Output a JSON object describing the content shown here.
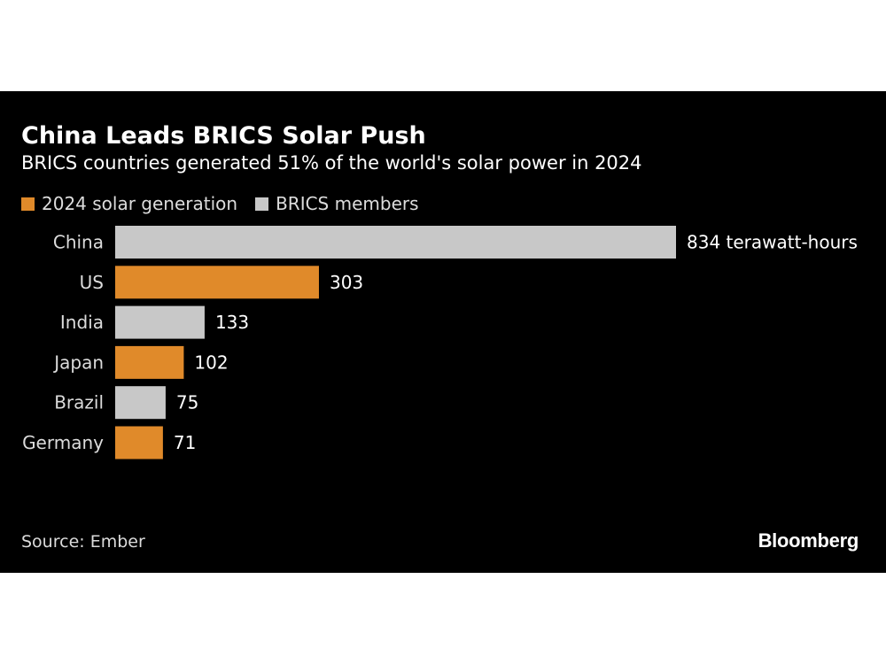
{
  "title": "China Leads BRICS Solar Push",
  "subtitle": "BRICS countries generated 51% of the world's solar power in 2024",
  "legend": [
    {
      "label": "2024 solar generation",
      "color": "#e08a2a"
    },
    {
      "label": "BRICS members",
      "color": "#c8c8c8"
    }
  ],
  "source": "Source: Ember",
  "brand": "Bloomberg",
  "colors": {
    "background": "#000000",
    "highlight": "#e08a2a",
    "brics": "#c8c8c8",
    "text": "#ffffff",
    "muted": "#dcdcdc"
  },
  "chart_data": {
    "type": "bar",
    "orientation": "horizontal",
    "categories": [
      "China",
      "US",
      "India",
      "Japan",
      "Brazil",
      "Germany"
    ],
    "values": [
      834,
      303,
      133,
      102,
      75,
      71
    ],
    "value_labels": [
      "834 terawatt-hours",
      "303",
      "133",
      "102",
      "75",
      "71"
    ],
    "group": [
      "BRICS members",
      "2024 solar generation",
      "BRICS members",
      "2024 solar generation",
      "BRICS members",
      "2024 solar generation"
    ],
    "title": "China Leads BRICS Solar Push",
    "unit": "terawatt-hours",
    "xlim": [
      0,
      834
    ]
  }
}
